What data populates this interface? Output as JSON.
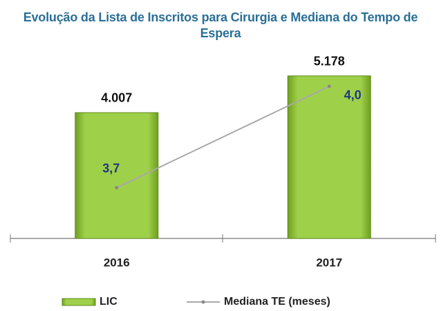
{
  "chart_data": {
    "type": "bar_line",
    "title": "Evolução da Lista de Inscritos para Cirurgia e Mediana do Tempo de Espera",
    "categories": [
      "2016",
      "2017"
    ],
    "series": [
      {
        "name": "LIC",
        "type": "bar",
        "color": "#8cc63f",
        "values": [
          4007,
          5178
        ],
        "value_labels": [
          "4.007",
          "5.178"
        ]
      },
      {
        "name": "Mediana TE (meses)",
        "type": "line",
        "axis": "y2",
        "color": "#a8a8a8",
        "values": [
          3.7,
          4.0
        ],
        "value_labels": [
          "3,7",
          "4,0"
        ]
      }
    ],
    "ylim": [
      0,
      7000
    ],
    "y2lim": [
      3.55,
      4.2
    ],
    "legend": "bottom"
  }
}
